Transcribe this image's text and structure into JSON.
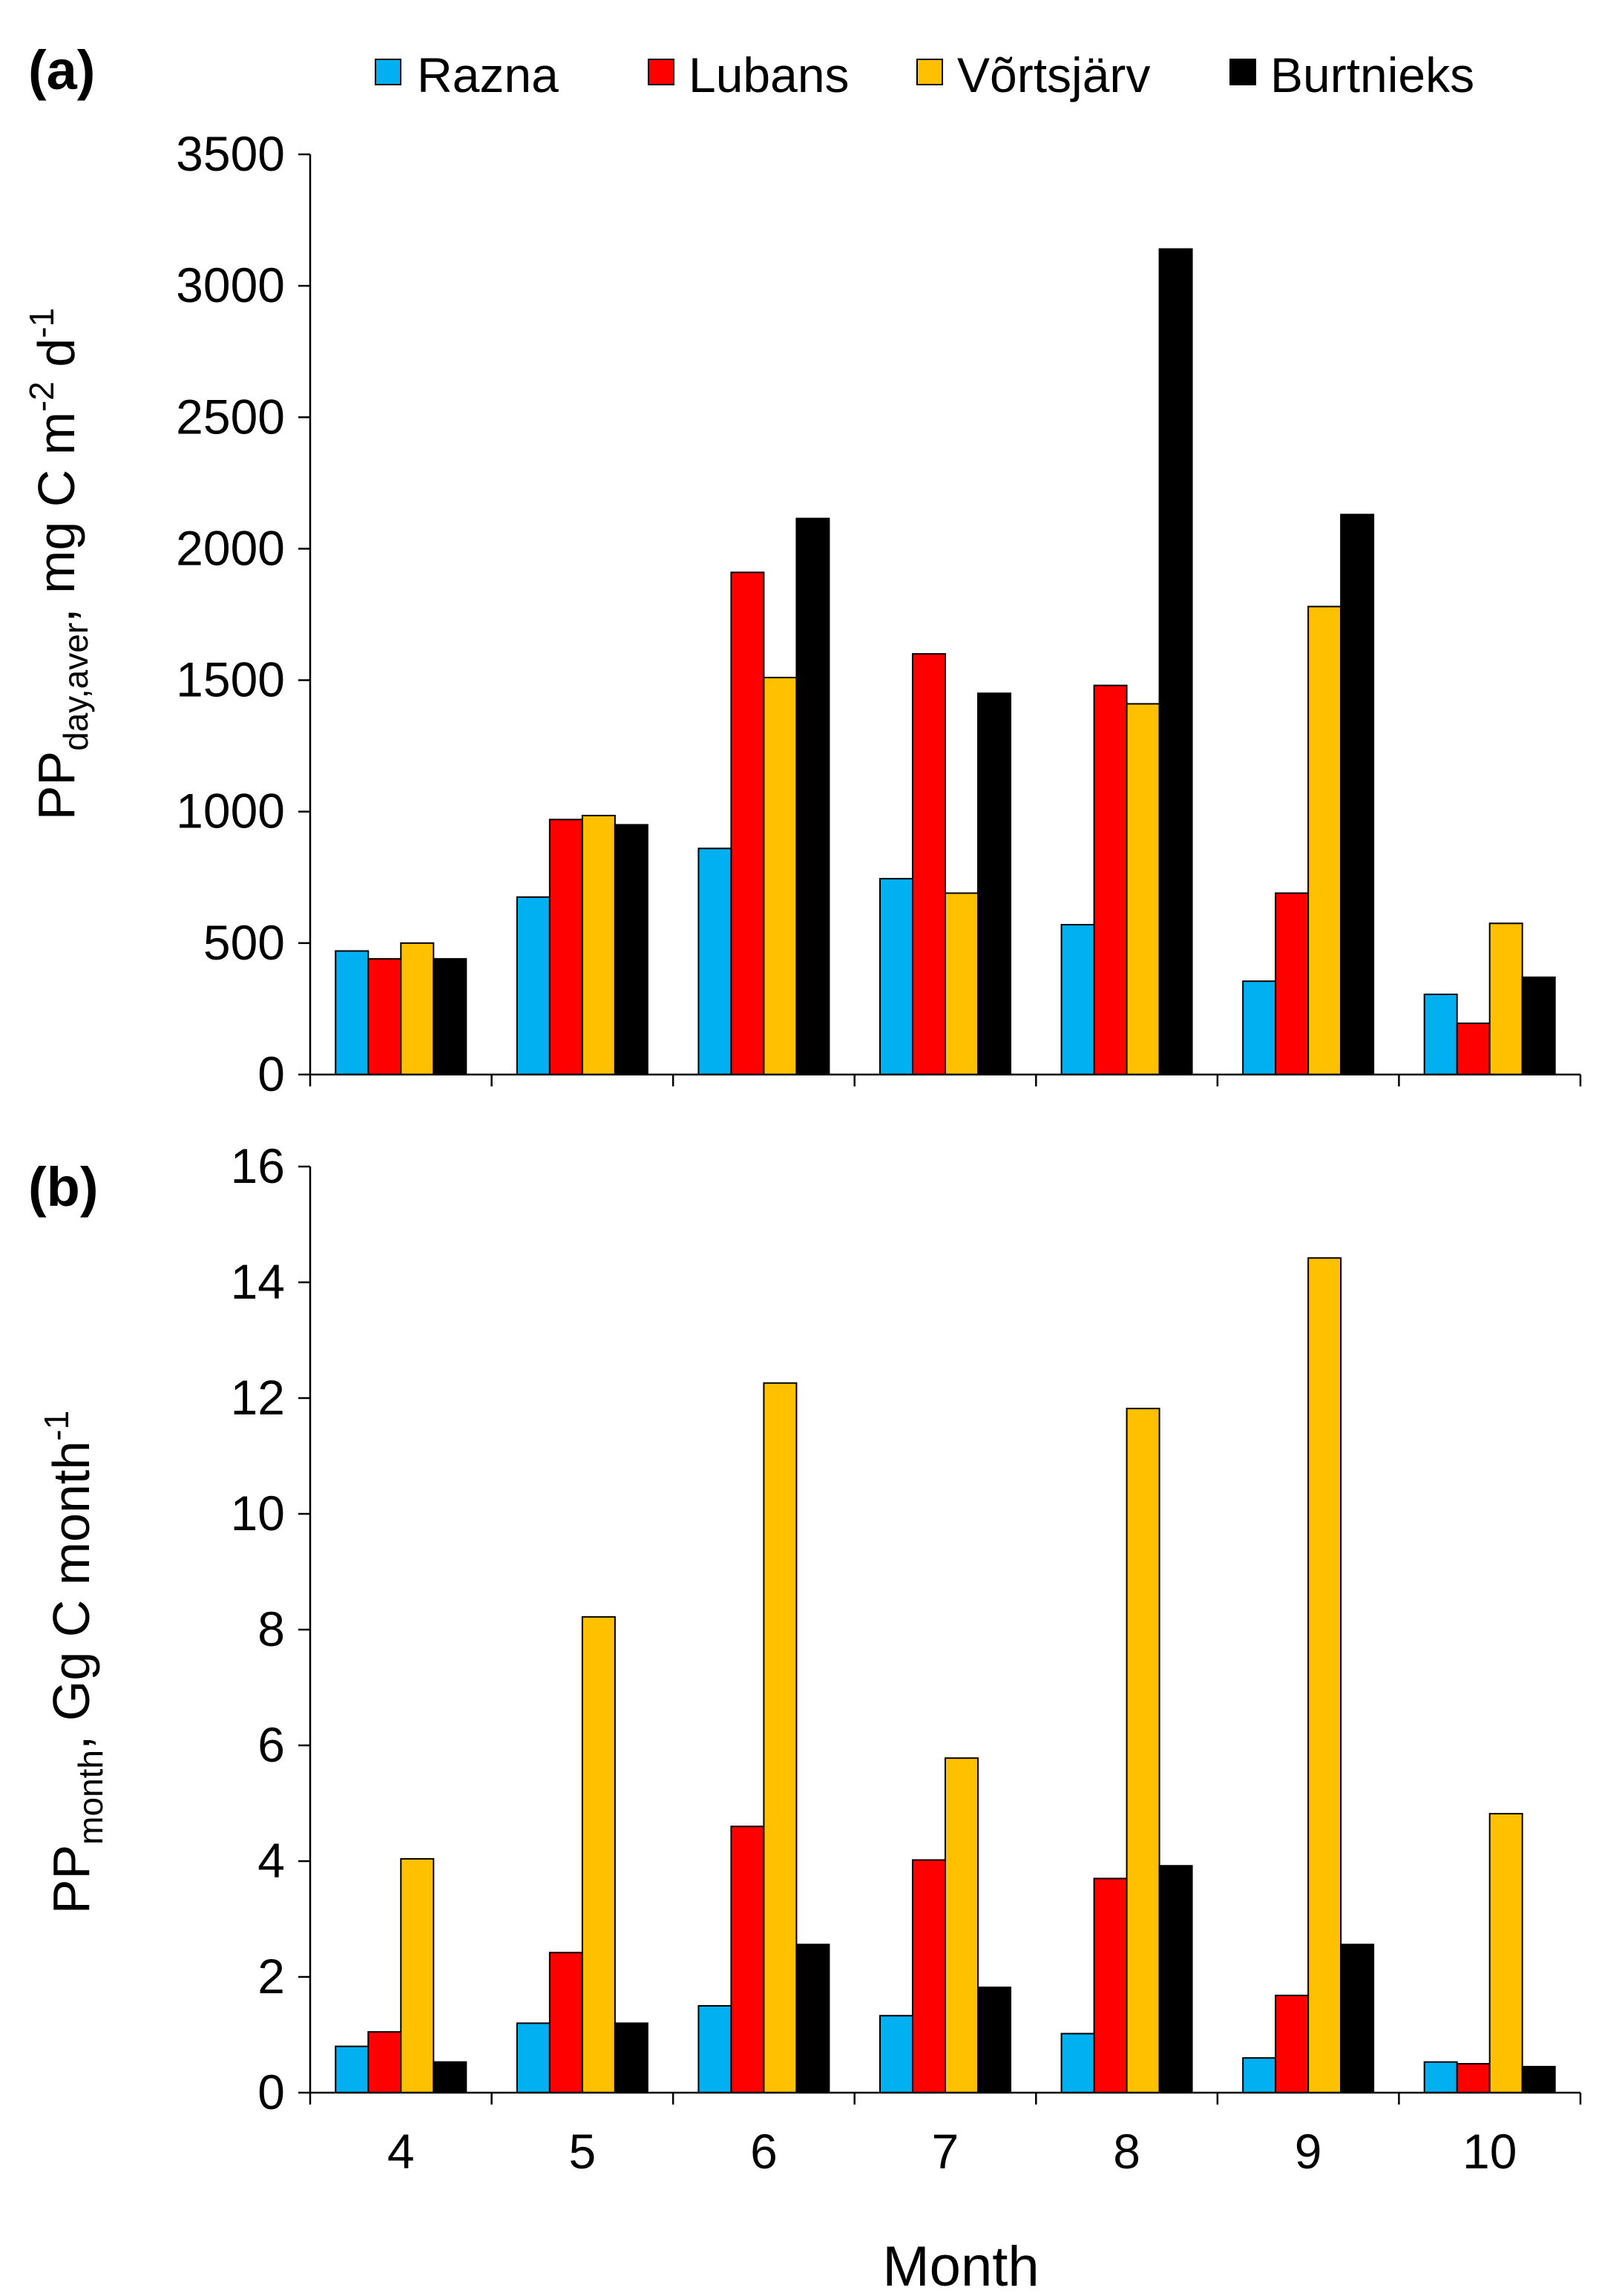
{
  "colors": {
    "Razna": "#00b0f0",
    "Lubans": "#ff0000",
    "Vortsjarv": "#ffc000",
    "Burtnieks": "#000000"
  },
  "legend": [
    "Razna",
    "Lubans",
    "Võrtsjärv",
    "Burtnieks"
  ],
  "xlabel": "Month",
  "chart_data": [
    {
      "type": "bar",
      "panel_label": "(a)",
      "categories": [
        "4",
        "5",
        "6",
        "7",
        "8",
        "9",
        "10"
      ],
      "ylim": [
        0,
        3500
      ],
      "yticks": [
        "0",
        "500",
        "1000",
        "1500",
        "2000",
        "2500",
        "3000",
        "3500"
      ],
      "ylabel": {
        "main": "PP",
        "sub": "day,aver",
        "rest": ", mg C m",
        "sup1": "-2",
        "mid": " d",
        "sup2": "-1"
      },
      "series": [
        {
          "name": "Razna",
          "values": [
            470,
            675,
            860,
            745,
            570,
            355,
            305
          ]
        },
        {
          "name": "Lubans",
          "values": [
            440,
            970,
            1910,
            1600,
            1480,
            690,
            195
          ]
        },
        {
          "name": "Võrtsjärv",
          "values": [
            500,
            985,
            1510,
            690,
            1410,
            1780,
            575
          ]
        },
        {
          "name": "Burtnieks",
          "values": [
            440,
            950,
            2115,
            1450,
            3140,
            2130,
            370
          ]
        }
      ]
    },
    {
      "type": "bar",
      "panel_label": "(b)",
      "categories": [
        "4",
        "5",
        "6",
        "7",
        "8",
        "9",
        "10"
      ],
      "ylim": [
        0,
        16
      ],
      "yticks": [
        "0",
        "2",
        "4",
        "6",
        "8",
        "10",
        "12",
        "14",
        "16"
      ],
      "ylabel": {
        "main": "PP",
        "sub": "month",
        "rest": ",  Gg C month",
        "sup1": "-1"
      },
      "series": [
        {
          "name": "Razna",
          "values": [
            0.8,
            1.2,
            1.5,
            1.33,
            1.02,
            0.6,
            0.53
          ]
        },
        {
          "name": "Lubans",
          "values": [
            1.05,
            2.42,
            4.6,
            4.02,
            3.7,
            1.68,
            0.5
          ]
        },
        {
          "name": "Võrtsjärv",
          "values": [
            4.04,
            8.22,
            12.26,
            5.78,
            11.82,
            14.42,
            4.82
          ]
        },
        {
          "name": "Burtnieks",
          "values": [
            0.53,
            1.2,
            2.56,
            1.82,
            3.92,
            2.56,
            0.45
          ]
        }
      ]
    }
  ]
}
